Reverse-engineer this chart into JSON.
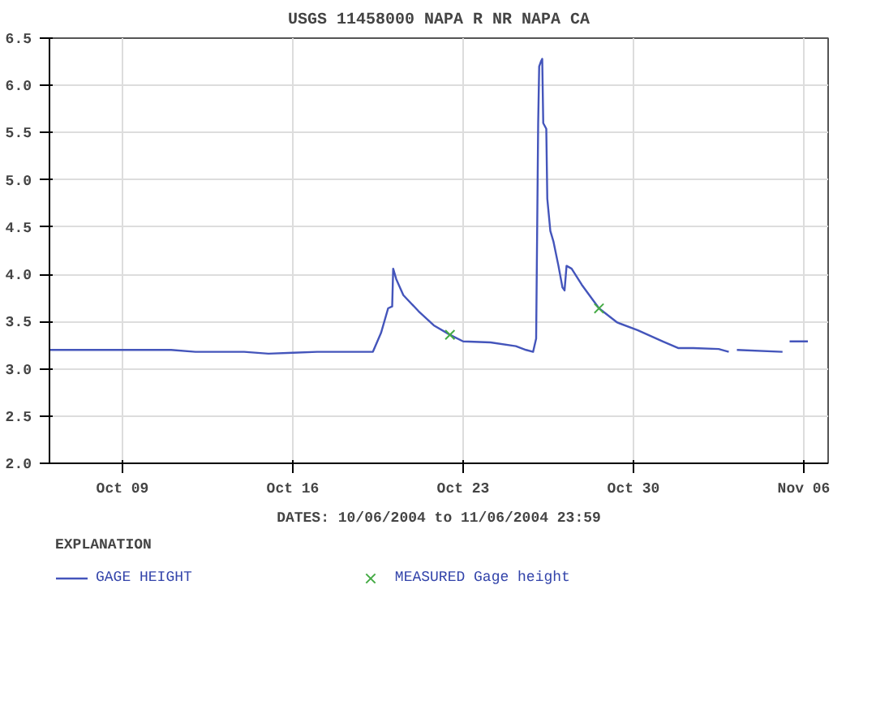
{
  "chart_data": {
    "type": "line",
    "title": "USGS 11458000 NAPA R NR NAPA CA",
    "xlabel": "DATES: 10/06/2004 to 11/06/2004 23:59",
    "legend_title": "EXPLANATION",
    "xlim": [
      "2004-10-06",
      "2004-11-07"
    ],
    "xticks": [
      {
        "value": "2004-10-09",
        "label": "Oct 09"
      },
      {
        "value": "2004-10-16",
        "label": "Oct 16"
      },
      {
        "value": "2004-10-23",
        "label": "Oct 23"
      },
      {
        "value": "2004-10-30",
        "label": "Oct 30"
      },
      {
        "value": "2004-11-06",
        "label": "Nov 06"
      }
    ],
    "ylim": [
      2.0,
      6.5
    ],
    "yticks": [
      {
        "value": 2.0,
        "label": "2.0"
      },
      {
        "value": 2.5,
        "label": "2.5"
      },
      {
        "value": 3.0,
        "label": "3.0"
      },
      {
        "value": 3.5,
        "label": "3.5"
      },
      {
        "value": 4.0,
        "label": "4.0"
      },
      {
        "value": 4.5,
        "label": "4.5"
      },
      {
        "value": 5.0,
        "label": "5.0"
      },
      {
        "value": 5.5,
        "label": "5.5"
      },
      {
        "value": 6.0,
        "label": "6.0"
      },
      {
        "value": 6.5,
        "label": "6.5"
      }
    ],
    "grid": true,
    "legend": "bottom",
    "series": [
      {
        "name": "GAGE HEIGHT",
        "color": "#4455bb",
        "x": [
          "2004-10-06T00:00",
          "2004-10-09T00:00",
          "2004-10-11T00:00",
          "2004-10-12T00:00",
          "2004-10-14T00:00",
          "2004-10-15T00:00",
          "2004-10-16T00:00",
          "2004-10-17T00:00",
          "2004-10-19T07:00",
          "2004-10-19T15:00",
          "2004-10-19T22:00",
          "2004-10-20T02:00",
          "2004-10-20T03:00",
          "2004-10-20T06:00",
          "2004-10-20T13:00",
          "2004-10-21T04:00",
          "2004-10-21T19:00",
          "2004-10-22T11:00",
          "2004-10-23T00:00",
          "2004-10-24T03:00",
          "2004-10-25T04:00",
          "2004-10-25T14:00",
          "2004-10-25T21:00",
          "2004-10-26T00:00",
          "2004-10-26T02:00",
          "2004-10-26T03:00",
          "2004-10-26T05:00",
          "2004-10-26T06:00",
          "2004-10-26T07:00",
          "2004-10-26T10:00",
          "2004-10-26T11:00",
          "2004-10-26T14:00",
          "2004-10-26T17:00",
          "2004-10-26T22:00",
          "2004-10-27T02:00",
          "2004-10-27T04:00",
          "2004-10-27T06:00",
          "2004-10-27T11:00",
          "2004-10-27T21:00",
          "2004-10-28T14:00",
          "2004-10-29T08:00",
          "2004-10-30T04:00",
          "2004-10-31T05:00",
          "2004-10-31T20:00",
          "2004-11-01T11:00",
          "2004-11-02T12:00",
          "2004-11-02T22:00",
          "2004-11-03T02:00",
          "2004-11-03T06:00",
          "2004-11-05T03:00",
          "2004-11-05T06:00",
          "2004-11-05T10:00",
          "2004-11-06T04:00"
        ],
        "values": [
          3.2,
          3.2,
          3.2,
          3.18,
          3.18,
          3.16,
          3.17,
          3.18,
          3.18,
          3.38,
          3.64,
          3.66,
          4.06,
          3.95,
          3.78,
          3.61,
          3.46,
          3.36,
          3.29,
          3.28,
          3.24,
          3.2,
          3.18,
          3.32,
          5.6,
          6.2,
          6.26,
          6.28,
          5.6,
          5.54,
          4.8,
          4.46,
          4.35,
          4.09,
          3.86,
          3.83,
          4.09,
          4.06,
          3.89,
          3.64,
          3.49,
          3.41,
          3.29,
          3.22,
          3.22,
          3.21,
          3.18,
          null,
          3.2,
          3.18,
          null,
          3.29,
          3.29
        ]
      },
      {
        "name": "MEASURED Gage height",
        "type": "scatter",
        "marker": "cross",
        "color": "#44aa44",
        "x": [
          "2004-10-22T11:00",
          "2004-10-28T14:00"
        ],
        "values": [
          3.36,
          3.64
        ]
      }
    ]
  }
}
